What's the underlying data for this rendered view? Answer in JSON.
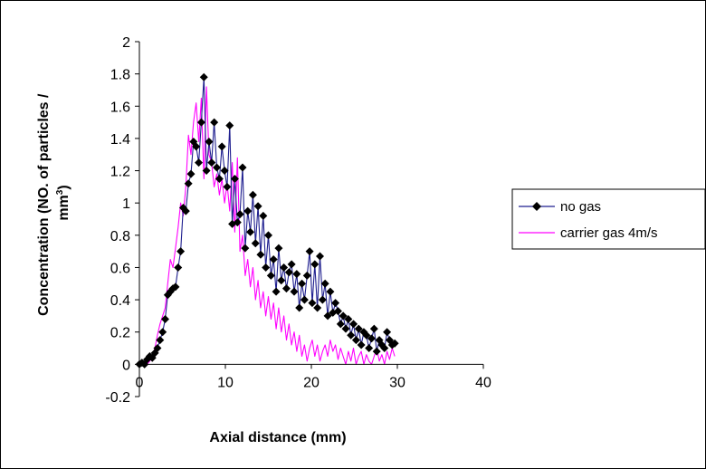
{
  "chart_data": {
    "type": "line",
    "xlabel": "Axial distance (mm)",
    "ylabel_line1": "Concentration (NO. of particles /",
    "ylabel_line2": "mm",
    "ylabel_superscript": "3",
    "ylabel_close": ")",
    "xlim": [
      0,
      40
    ],
    "ylim": [
      -0.2,
      2
    ],
    "xticks": [
      "0",
      "10",
      "20",
      "30",
      "40"
    ],
    "yticks": [
      "-0.2",
      "0",
      "0.2",
      "0.4",
      "0.6",
      "0.8",
      "1",
      "1.2",
      "1.4",
      "1.6",
      "1.8",
      "2"
    ],
    "legend_position": "right",
    "grid": false,
    "series": [
      {
        "name": "no gas",
        "color": "#1f1f8f",
        "marker": "diamond",
        "x": [
          0.0,
          0.3,
          0.6,
          0.9,
          1.2,
          1.5,
          1.8,
          2.1,
          2.4,
          2.7,
          3.0,
          3.3,
          3.6,
          3.9,
          4.2,
          4.5,
          4.8,
          5.1,
          5.4,
          5.7,
          6.0,
          6.3,
          6.6,
          6.9,
          7.2,
          7.5,
          7.8,
          8.1,
          8.4,
          8.7,
          9.0,
          9.3,
          9.6,
          9.9,
          10.2,
          10.5,
          10.8,
          11.1,
          11.4,
          11.7,
          12.0,
          12.3,
          12.6,
          12.9,
          13.2,
          13.5,
          13.8,
          14.1,
          14.4,
          14.7,
          15.0,
          15.3,
          15.6,
          15.9,
          16.2,
          16.5,
          16.8,
          17.1,
          17.4,
          17.7,
          18.0,
          18.3,
          18.6,
          18.9,
          19.2,
          19.5,
          19.8,
          20.1,
          20.4,
          20.7,
          21.0,
          21.3,
          21.6,
          21.9,
          22.2,
          22.5,
          22.8,
          23.1,
          23.4,
          23.7,
          24.0,
          24.3,
          24.6,
          24.9,
          25.2,
          25.5,
          25.8,
          26.1,
          26.4,
          26.7,
          27.0,
          27.3,
          27.6,
          27.9,
          28.2,
          28.5,
          28.8,
          29.1,
          29.4,
          29.7
        ],
        "y": [
          0.0,
          0.01,
          0.0,
          0.03,
          0.05,
          0.04,
          0.07,
          0.1,
          0.15,
          0.2,
          0.28,
          0.43,
          0.45,
          0.47,
          0.48,
          0.6,
          0.7,
          0.97,
          0.95,
          1.12,
          1.18,
          1.38,
          1.35,
          1.25,
          1.5,
          1.78,
          1.2,
          1.38,
          1.25,
          1.5,
          1.22,
          1.15,
          1.35,
          1.2,
          1.1,
          1.48,
          0.87,
          1.15,
          0.88,
          0.93,
          1.22,
          0.72,
          0.95,
          0.82,
          1.05,
          0.75,
          0.98,
          0.68,
          0.92,
          0.6,
          0.8,
          0.55,
          0.65,
          0.45,
          0.72,
          0.52,
          0.6,
          0.47,
          0.57,
          0.62,
          0.45,
          0.56,
          0.35,
          0.5,
          0.4,
          0.55,
          0.7,
          0.38,
          0.62,
          0.35,
          0.67,
          0.4,
          0.5,
          0.3,
          0.45,
          0.32,
          0.38,
          0.33,
          0.25,
          0.3,
          0.22,
          0.28,
          0.18,
          0.25,
          0.15,
          0.22,
          0.12,
          0.2,
          0.18,
          0.1,
          0.16,
          0.22,
          0.08,
          0.15,
          0.12,
          0.1,
          0.2,
          0.15,
          0.12,
          0.13
        ]
      },
      {
        "name": "carrier gas 4m/s",
        "color": "#ff00ff",
        "marker": "none",
        "x": [
          0.0,
          0.3,
          0.6,
          0.9,
          1.2,
          1.5,
          1.8,
          2.1,
          2.4,
          2.7,
          3.0,
          3.3,
          3.6,
          3.9,
          4.2,
          4.5,
          4.8,
          5.1,
          5.4,
          5.7,
          6.0,
          6.3,
          6.6,
          6.9,
          7.2,
          7.5,
          7.8,
          8.1,
          8.4,
          8.7,
          9.0,
          9.3,
          9.6,
          9.9,
          10.2,
          10.5,
          10.8,
          11.1,
          11.4,
          11.7,
          12.0,
          12.3,
          12.6,
          12.9,
          13.2,
          13.5,
          13.8,
          14.1,
          14.4,
          14.7,
          15.0,
          15.3,
          15.6,
          15.9,
          16.2,
          16.5,
          16.8,
          17.1,
          17.4,
          17.7,
          18.0,
          18.3,
          18.6,
          18.9,
          19.2,
          19.5,
          19.8,
          20.1,
          20.4,
          20.7,
          21.0,
          21.3,
          21.6,
          21.9,
          22.2,
          22.5,
          22.8,
          23.1,
          23.4,
          23.7,
          24.0,
          24.3,
          24.6,
          24.9,
          25.2,
          25.5,
          25.8,
          26.1,
          26.4,
          26.7,
          27.0,
          27.3,
          27.6,
          27.9,
          28.2,
          28.5,
          28.8,
          29.1,
          29.4,
          29.7
        ],
        "y": [
          0.0,
          0.0,
          0.01,
          0.0,
          0.02,
          0.05,
          0.1,
          0.18,
          0.25,
          0.3,
          0.35,
          0.5,
          0.65,
          0.6,
          0.72,
          0.85,
          1.0,
          0.92,
          1.1,
          1.42,
          1.3,
          1.5,
          1.62,
          1.38,
          1.65,
          1.15,
          1.72,
          1.3,
          1.25,
          1.1,
          1.18,
          1.05,
          1.15,
          1.0,
          1.12,
          0.95,
          1.25,
          0.82,
          1.28,
          0.7,
          0.8,
          0.55,
          0.65,
          0.48,
          0.6,
          0.4,
          0.52,
          0.35,
          0.45,
          0.3,
          0.42,
          0.28,
          0.38,
          0.22,
          0.35,
          0.2,
          0.3,
          0.15,
          0.25,
          0.12,
          0.2,
          0.08,
          0.18,
          0.05,
          0.12,
          0.02,
          0.1,
          0.15,
          0.05,
          0.12,
          0.02,
          0.08,
          0.12,
          0.05,
          0.15,
          0.08,
          0.12,
          0.03,
          0.1,
          0.05,
          0.0,
          0.08,
          0.02,
          0.1,
          0.0,
          0.05,
          0.08,
          0.0,
          0.06,
          0.02,
          0.0,
          0.05,
          0.1,
          0.02,
          0.06,
          0.0,
          0.08,
          0.03,
          0.1,
          0.05
        ]
      }
    ]
  }
}
